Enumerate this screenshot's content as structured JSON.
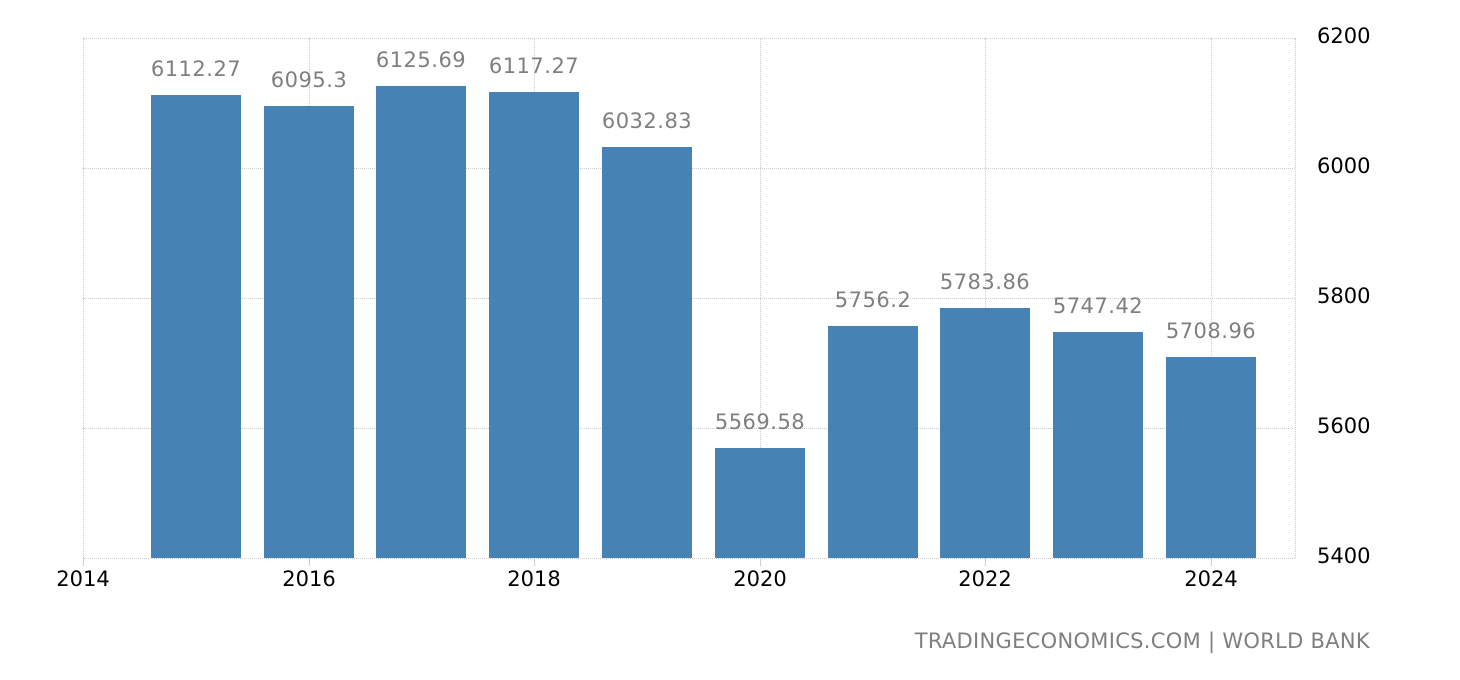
{
  "chart_data": {
    "type": "bar",
    "title": "",
    "xlabel": "",
    "ylabel": "",
    "categories": [
      "2015",
      "2016",
      "2017",
      "2018",
      "2019",
      "2020",
      "2021",
      "2022",
      "2023",
      "2024"
    ],
    "values": [
      6112.27,
      6095.3,
      6125.69,
      6117.27,
      6032.83,
      5569.58,
      5756.2,
      5783.86,
      5747.42,
      5708.96
    ],
    "value_labels": [
      "6112.27",
      "6095.3",
      "6125.69",
      "6117.27",
      "6032.83",
      "5569.58",
      "5756.2",
      "5783.86",
      "5747.42",
      "5708.96"
    ],
    "x_ticks": [
      "2014",
      "2016",
      "2018",
      "2020",
      "2022",
      "2024"
    ],
    "y_ticks": [
      "5400",
      "5600",
      "5800",
      "6000",
      "6200"
    ],
    "ylim": [
      5400,
      6200
    ],
    "xlim": [
      2014,
      2025
    ],
    "y_axis_position": "right",
    "grid": true,
    "legend": null,
    "bar_color": "#4682b4",
    "source": "TRADINGECONOMICS.COM | WORLD BANK"
  }
}
